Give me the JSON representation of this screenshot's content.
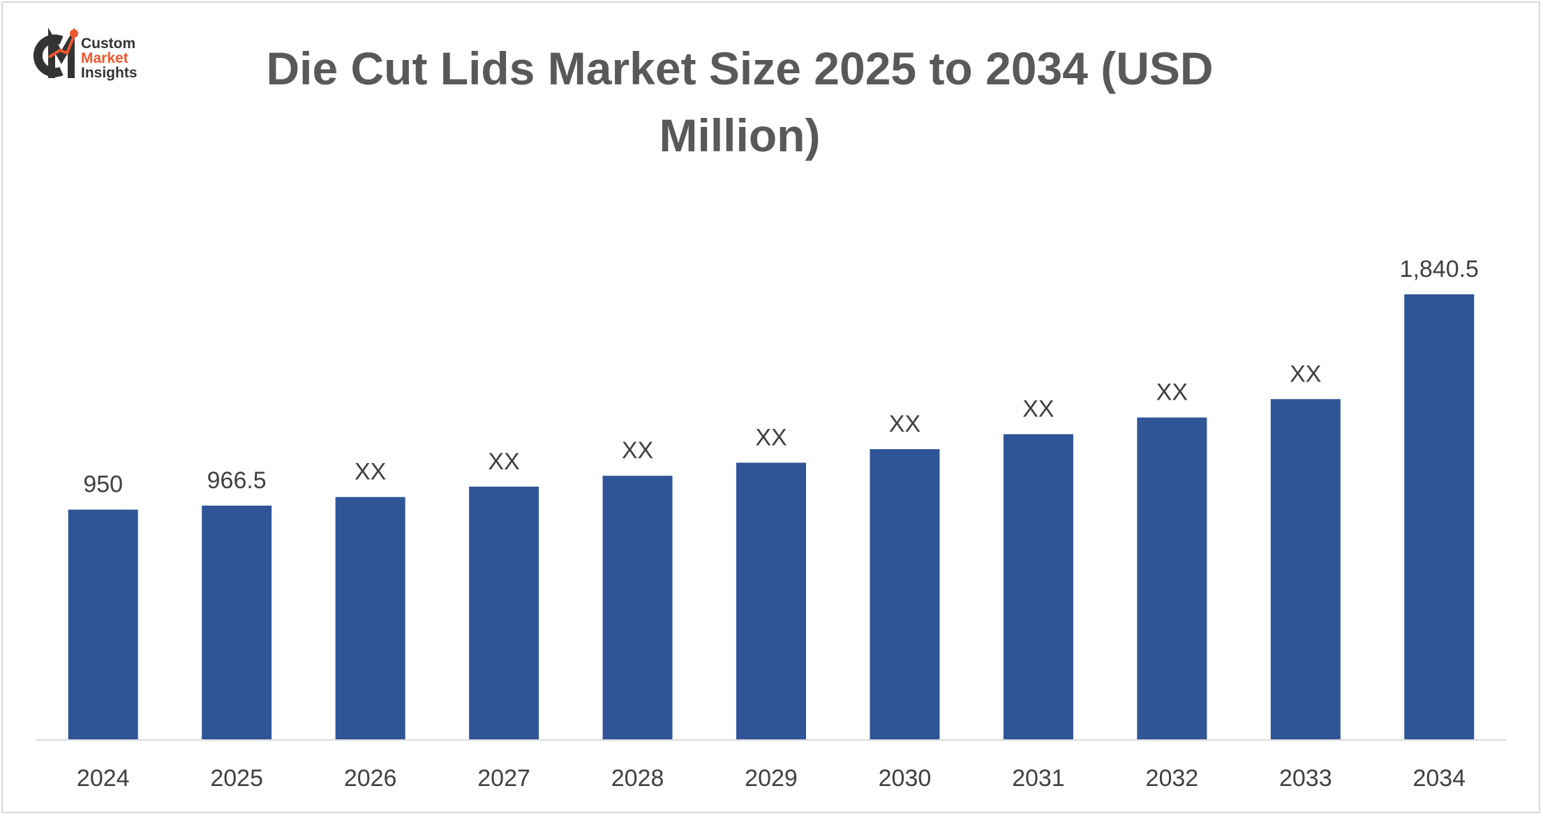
{
  "logo": {
    "line1": "Custom",
    "line2": "Market",
    "line3": "Insights",
    "mark_color": "#333333",
    "accent_color": "#f0562d"
  },
  "title_line1": "Die Cut Lids Market Size 2025 to 2034 (USD",
  "title_line2": "Million)",
  "colors": {
    "bar": "#2f5597",
    "label": "#404040",
    "axis": "#d9d9d9",
    "title": "#595959"
  },
  "chart_data": {
    "type": "bar",
    "title": "Die Cut Lids Market Size 2025 to 2034 (USD Million)",
    "xlabel": "",
    "ylabel": "",
    "categories": [
      "2024",
      "2025",
      "2026",
      "2027",
      "2028",
      "2029",
      "2030",
      "2031",
      "2032",
      "2033",
      "2034"
    ],
    "values": [
      950,
      966.5,
      1002,
      1045,
      1090,
      1144,
      1200,
      1262,
      1331,
      1407,
      1840.5
    ],
    "data_labels": [
      "950",
      "966.5",
      "XX",
      "XX",
      "XX",
      "XX",
      "XX",
      "XX",
      "XX",
      "XX",
      "1,840.5"
    ],
    "ylim": [
      0,
      1840.5
    ],
    "grid": false,
    "legend": "none"
  }
}
